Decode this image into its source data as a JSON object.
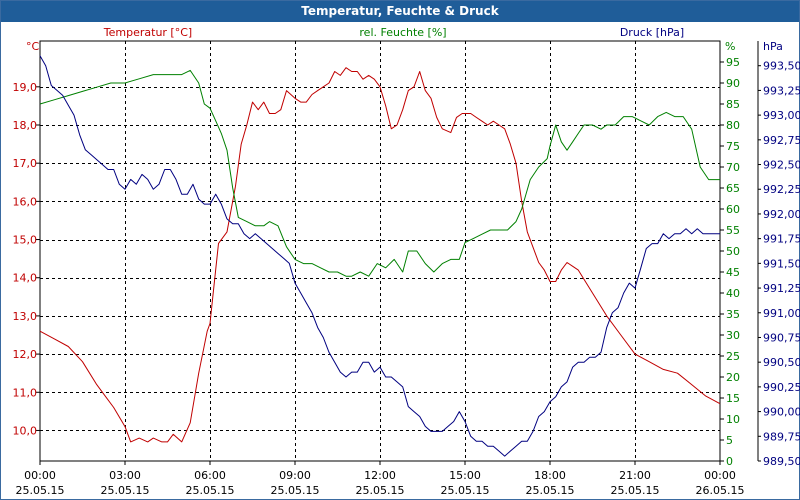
{
  "chart_data": {
    "type": "line",
    "title": "Temperatur, Feuchte & Druck",
    "axes": {
      "left": {
        "label": "Temperatur [°C]",
        "unit": "°C",
        "color": "#c00000",
        "range": [
          9.2,
          20.2
        ],
        "ticks": [
          "10,0",
          "11,0",
          "12,0",
          "13,0",
          "14,0",
          "15,0",
          "16,0",
          "17,0",
          "18,0",
          "19,0"
        ],
        "tick_values": [
          10,
          11,
          12,
          13,
          14,
          15,
          16,
          17,
          18,
          19
        ]
      },
      "mid": {
        "label": "rel. Feuchte [%]",
        "unit": "%",
        "color": "#008000",
        "range": [
          0,
          100
        ],
        "ticks": [
          "0",
          "5",
          "10",
          "15",
          "20",
          "25",
          "30",
          "35",
          "40",
          "45",
          "50",
          "55",
          "60",
          "65",
          "70",
          "75",
          "80",
          "85",
          "90",
          "95"
        ],
        "tick_values": [
          0,
          5,
          10,
          15,
          20,
          25,
          30,
          35,
          40,
          45,
          50,
          55,
          60,
          65,
          70,
          75,
          80,
          85,
          90,
          95
        ]
      },
      "right": {
        "label": "Druck [hPa]",
        "unit": "hPa",
        "color": "#000080",
        "range": [
          989.5,
          993.75
        ],
        "ticks": [
          "989,50",
          "989,75",
          "990,00",
          "990,25",
          "990,50",
          "990,75",
          "991,00",
          "991,25",
          "991,50",
          "991,75",
          "992,00",
          "992,25",
          "992,50",
          "992,75",
          "993,00",
          "993,25",
          "993,50"
        ],
        "tick_values": [
          989.5,
          989.75,
          990,
          990.25,
          990.5,
          990.75,
          991,
          991.25,
          991.5,
          991.75,
          992,
          992.25,
          992.5,
          992.75,
          993,
          993.25,
          993.5
        ]
      }
    },
    "x": {
      "range": [
        0,
        24
      ],
      "ticks": [
        {
          "time": "00:00",
          "date": "25.05.15",
          "value": 0
        },
        {
          "time": "03:00",
          "date": "25.05.15",
          "value": 3
        },
        {
          "time": "06:00",
          "date": "25.05.15",
          "value": 6
        },
        {
          "time": "09:00",
          "date": "25.05.15",
          "value": 9
        },
        {
          "time": "12:00",
          "date": "25.05.15",
          "value": 12
        },
        {
          "time": "15:00",
          "date": "25.05.15",
          "value": 15
        },
        {
          "time": "18:00",
          "date": "25.05.15",
          "value": 18
        },
        {
          "time": "21:00",
          "date": "25.05.15",
          "value": 21
        },
        {
          "time": "00:00",
          "date": "26.05.15",
          "value": 24
        }
      ]
    },
    "grid": true,
    "series": [
      {
        "name": "Temperatur [°C]",
        "axis": "left",
        "color": "#c00000",
        "x": [
          0,
          0.5,
          1,
          1.5,
          2,
          2.3,
          2.6,
          3,
          3.2,
          3.5,
          3.8,
          4,
          4.3,
          4.5,
          4.7,
          5,
          5.3,
          5.6,
          5.9,
          6,
          6.1,
          6.3,
          6.6,
          6.9,
          7.1,
          7.3,
          7.5,
          7.7,
          7.9,
          8.1,
          8.3,
          8.5,
          8.7,
          9,
          9.2,
          9.4,
          9.6,
          9.8,
          10,
          10.2,
          10.4,
          10.6,
          10.8,
          11,
          11.2,
          11.4,
          11.6,
          11.8,
          12,
          12.2,
          12.4,
          12.6,
          12.8,
          13,
          13.2,
          13.4,
          13.6,
          13.8,
          14,
          14.2,
          14.5,
          14.7,
          14.9,
          15,
          15.2,
          15.4,
          15.6,
          15.8,
          16,
          16.2,
          16.4,
          16.6,
          16.8,
          17,
          17.2,
          17.4,
          17.6,
          17.8,
          18,
          18.2,
          18.4,
          18.6,
          18.8,
          19,
          19.5,
          20,
          20.5,
          21,
          21.5,
          22,
          22.5,
          23,
          23.5,
          24
        ],
        "values": [
          12.6,
          12.4,
          12.2,
          11.8,
          11.2,
          10.9,
          10.6,
          10.1,
          9.7,
          9.8,
          9.7,
          9.8,
          9.7,
          9.7,
          9.9,
          9.7,
          10.2,
          11.5,
          12.6,
          12.8,
          13.5,
          14.9,
          15.2,
          16.4,
          17.5,
          18.0,
          18.6,
          18.4,
          18.6,
          18.3,
          18.3,
          18.4,
          18.9,
          18.7,
          18.6,
          18.6,
          18.8,
          18.9,
          19.0,
          19.1,
          19.4,
          19.3,
          19.5,
          19.4,
          19.4,
          19.2,
          19.3,
          19.2,
          19.0,
          18.5,
          17.9,
          18.0,
          18.4,
          18.9,
          19.0,
          19.4,
          18.9,
          18.7,
          18.2,
          17.9,
          17.8,
          18.2,
          18.3,
          18.3,
          18.3,
          18.2,
          18.1,
          18.0,
          18.1,
          18.0,
          17.9,
          17.5,
          17.0,
          16.0,
          15.2,
          14.8,
          14.4,
          14.2,
          13.9,
          13.9,
          14.2,
          14.4,
          14.3,
          14.2,
          13.6,
          13.0,
          12.5,
          12.0,
          11.8,
          11.6,
          11.5,
          11.2,
          10.9,
          10.7
        ]
      },
      {
        "name": "rel. Feuchte [%]",
        "axis": "mid",
        "color": "#008000",
        "x": [
          0,
          0.5,
          1,
          1.5,
          2,
          2.5,
          3,
          3.5,
          4,
          4.5,
          5,
          5.3,
          5.6,
          5.8,
          6,
          6.2,
          6.4,
          6.6,
          6.8,
          7,
          7.3,
          7.6,
          7.9,
          8.1,
          8.4,
          8.7,
          9,
          9.3,
          9.6,
          9.9,
          10.2,
          10.5,
          10.8,
          11,
          11.3,
          11.6,
          11.9,
          12.2,
          12.5,
          12.8,
          13,
          13.3,
          13.6,
          13.9,
          14.2,
          14.5,
          14.8,
          15,
          15.3,
          15.6,
          15.9,
          16.2,
          16.5,
          16.8,
          17,
          17.3,
          17.6,
          17.9,
          18,
          18.2,
          18.4,
          18.6,
          18.8,
          19,
          19.2,
          19.5,
          19.8,
          20,
          20.3,
          20.6,
          20.9,
          21.2,
          21.5,
          21.8,
          22.1,
          22.4,
          22.7,
          23,
          23.3,
          23.6,
          24
        ],
        "values": [
          85,
          86,
          87,
          88,
          89,
          90,
          90,
          91,
          92,
          92,
          92,
          93,
          90,
          85,
          84,
          81,
          78,
          74,
          65,
          58,
          57,
          56,
          56,
          57,
          56,
          51,
          48,
          47,
          47,
          46,
          45,
          45,
          44,
          44,
          45,
          44,
          47,
          46,
          48,
          45,
          50,
          50,
          47,
          45,
          47,
          48,
          48,
          52,
          53,
          54,
          55,
          55,
          55,
          57,
          60,
          67,
          70,
          72,
          75,
          80,
          76,
          74,
          76,
          78,
          80,
          80,
          79,
          80,
          80,
          82,
          82,
          81,
          80,
          82,
          83,
          82,
          82,
          79,
          70,
          67,
          67
        ]
      },
      {
        "name": "Druck [hPa]",
        "axis": "right",
        "color": "#000080",
        "x": [
          0,
          0.2,
          0.4,
          0.6,
          0.8,
          1,
          1.2,
          1.4,
          1.6,
          1.8,
          2,
          2.2,
          2.4,
          2.6,
          2.8,
          3,
          3.2,
          3.4,
          3.6,
          3.8,
          4,
          4.2,
          4.4,
          4.6,
          4.8,
          5,
          5.2,
          5.4,
          5.6,
          5.8,
          6,
          6.2,
          6.4,
          6.6,
          6.8,
          7,
          7.2,
          7.4,
          7.6,
          7.8,
          8,
          8.2,
          8.4,
          8.6,
          8.8,
          9,
          9.2,
          9.4,
          9.6,
          9.8,
          10,
          10.2,
          10.4,
          10.6,
          10.8,
          11,
          11.2,
          11.4,
          11.6,
          11.8,
          12,
          12.2,
          12.4,
          12.6,
          12.8,
          13,
          13.2,
          13.4,
          13.6,
          13.8,
          14,
          14.2,
          14.4,
          14.6,
          14.8,
          15,
          15.2,
          15.4,
          15.6,
          15.8,
          16,
          16.2,
          16.4,
          16.6,
          16.8,
          17,
          17.2,
          17.4,
          17.6,
          17.8,
          18,
          18.2,
          18.4,
          18.6,
          18.8,
          19,
          19.2,
          19.4,
          19.6,
          19.8,
          20,
          20.2,
          20.4,
          20.6,
          20.8,
          21,
          21.2,
          21.4,
          21.6,
          21.8,
          22,
          22.2,
          22.4,
          22.6,
          22.8,
          23,
          23.2,
          23.4,
          23.6,
          23.8,
          24
        ],
        "values": [
          993.6,
          993.5,
          993.3,
          993.25,
          993.2,
          993.1,
          993.0,
          992.8,
          992.65,
          992.6,
          992.55,
          992.5,
          992.45,
          992.45,
          992.3,
          992.25,
          992.35,
          992.3,
          992.4,
          992.35,
          992.25,
          992.3,
          992.45,
          992.45,
          992.35,
          992.2,
          992.2,
          992.3,
          992.15,
          992.1,
          992.1,
          992.2,
          992.1,
          991.95,
          991.9,
          991.9,
          991.8,
          991.75,
          991.8,
          991.75,
          991.7,
          991.65,
          991.6,
          991.55,
          991.5,
          991.3,
          991.2,
          991.1,
          991.0,
          990.85,
          990.75,
          990.6,
          990.5,
          990.4,
          990.35,
          990.4,
          990.4,
          990.5,
          990.5,
          990.4,
          990.45,
          990.35,
          990.35,
          990.3,
          990.25,
          990.05,
          990.0,
          989.95,
          989.85,
          989.8,
          989.8,
          989.8,
          989.85,
          989.9,
          990.0,
          989.9,
          989.75,
          989.7,
          989.7,
          989.65,
          989.65,
          989.6,
          989.55,
          989.6,
          989.65,
          989.7,
          989.7,
          989.8,
          989.95,
          990.0,
          990.1,
          990.15,
          990.25,
          990.3,
          990.45,
          990.5,
          990.5,
          990.55,
          990.55,
          990.6,
          990.85,
          991.0,
          991.05,
          991.2,
          991.3,
          991.25,
          991.45,
          991.65,
          991.7,
          991.7,
          991.8,
          991.75,
          991.8,
          991.8,
          991.85,
          991.8,
          991.85,
          991.8,
          991.8,
          991.8,
          991.8
        ]
      }
    ]
  }
}
